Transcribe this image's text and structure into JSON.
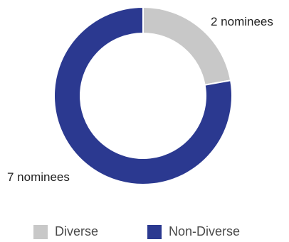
{
  "chart_data": {
    "type": "pie",
    "donut": true,
    "categories": [
      "Diverse",
      "Non-Diverse"
    ],
    "values": [
      2,
      7
    ],
    "data_labels": [
      "2 nominees",
      "7 nominees"
    ],
    "colors": [
      "#c8c8c8",
      "#2b3990"
    ],
    "legend_position": "bottom",
    "legend": [
      {
        "label": "Diverse",
        "color": "#c8c8c8"
      },
      {
        "label": "Non-Diverse",
        "color": "#2b3990"
      }
    ]
  }
}
